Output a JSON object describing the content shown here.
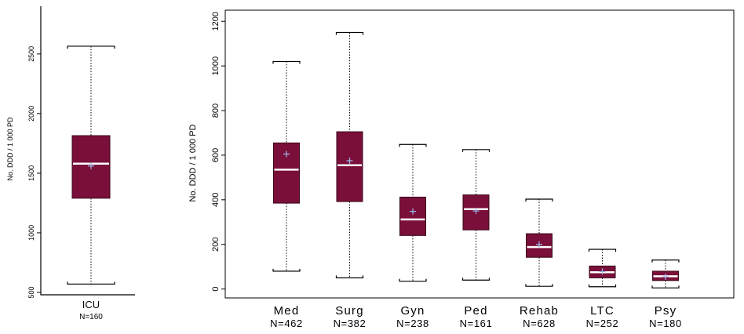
{
  "style": {
    "box_fill": "#7a0f3a",
    "box_stroke": "#3a0a1a",
    "median_color": "#ffffff",
    "mean_marker_color": "#9fb8e8",
    "axis_color": "#000000"
  },
  "chart_data": [
    {
      "type": "box",
      "title": "",
      "ylabel": "No. DDD / 1 000 PD",
      "ylim": [
        480,
        2900
      ],
      "yticks": [
        "500",
        "1000",
        "1500",
        "2000",
        "2500"
      ],
      "ytick_values": [
        500,
        1000,
        1500,
        2000,
        2500
      ],
      "grid": false,
      "categories": [
        {
          "label": "ICU",
          "n_label": "N=160",
          "whisker_low": 570,
          "q1": 1290,
          "median": 1580,
          "q3": 1815,
          "whisker_high": 2565,
          "mean": 1560
        }
      ]
    },
    {
      "type": "box",
      "title": "",
      "ylabel": "No. DDD / 1 000 PD",
      "ylim": [
        -40,
        1250
      ],
      "yticks": [
        "0",
        "200",
        "400",
        "600",
        "800",
        "1000",
        "1200"
      ],
      "ytick_values": [
        0,
        200,
        400,
        600,
        800,
        1000,
        1200
      ],
      "grid": false,
      "categories": [
        {
          "label": "Med",
          "n_label": "N=462",
          "whisker_low": 80,
          "q1": 385,
          "median": 535,
          "q3": 655,
          "whisker_high": 1020,
          "mean": 605
        },
        {
          "label": "Surg",
          "n_label": "N=382",
          "whisker_low": 50,
          "q1": 392,
          "median": 555,
          "q3": 705,
          "whisker_high": 1150,
          "mean": 575
        },
        {
          "label": "Gyn",
          "n_label": "N=238",
          "whisker_low": 35,
          "q1": 240,
          "median": 312,
          "q3": 412,
          "whisker_high": 648,
          "mean": 348
        },
        {
          "label": "Ped",
          "n_label": "N=161",
          "whisker_low": 40,
          "q1": 265,
          "median": 358,
          "q3": 422,
          "whisker_high": 625,
          "mean": 350
        },
        {
          "label": "Rehab",
          "n_label": "N=628",
          "whisker_low": 12,
          "q1": 142,
          "median": 188,
          "q3": 248,
          "whisker_high": 403,
          "mean": 200
        },
        {
          "label": "LTC",
          "n_label": "N=252",
          "whisker_low": 10,
          "q1": 50,
          "median": 75,
          "q3": 103,
          "whisker_high": 178,
          "mean": 78
        },
        {
          "label": "Psy",
          "n_label": "N=180",
          "whisker_low": 5,
          "q1": 38,
          "median": 57,
          "q3": 80,
          "whisker_high": 130,
          "mean": 55
        }
      ]
    }
  ]
}
